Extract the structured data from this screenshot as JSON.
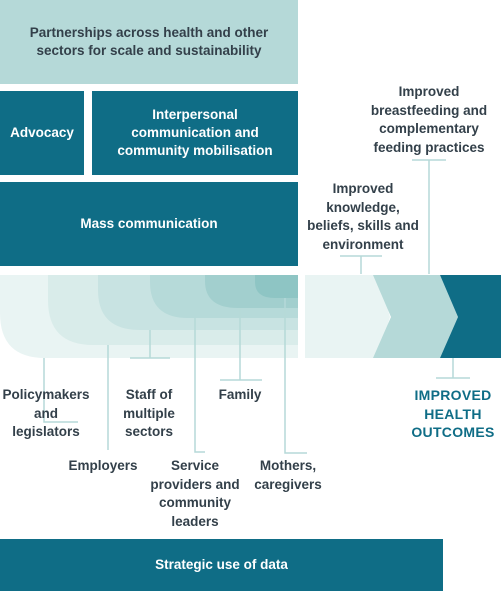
{
  "boxes": {
    "partnerships": "Partnerships across health and other sectors for scale and sustainability",
    "advocacy": "Advocacy",
    "interpersonal": "Interpersonal communication and community mobilisation",
    "mass_communication": "Mass communication",
    "strategic_data": "Strategic use of data"
  },
  "outcomes": {
    "breastfeeding": "Improved breastfeeding and complementary feeding practices",
    "knowledge": "Improved knowledge, beliefs, skills and environment",
    "health": "IMPROVED HEALTH OUTCOMES"
  },
  "audiences": {
    "policymakers": "Policymakers and legislators",
    "employers": "Employers",
    "staff": "Staff of multiple sectors",
    "service_providers": "Service providers and community leaders",
    "family": "Family",
    "mothers": "Mothers, caregivers"
  },
  "colors": {
    "dark_teal": "#0f6d86",
    "light_teal": "#b5d9d8",
    "mid_teal": "#9fcfce",
    "text": "#33404a"
  }
}
